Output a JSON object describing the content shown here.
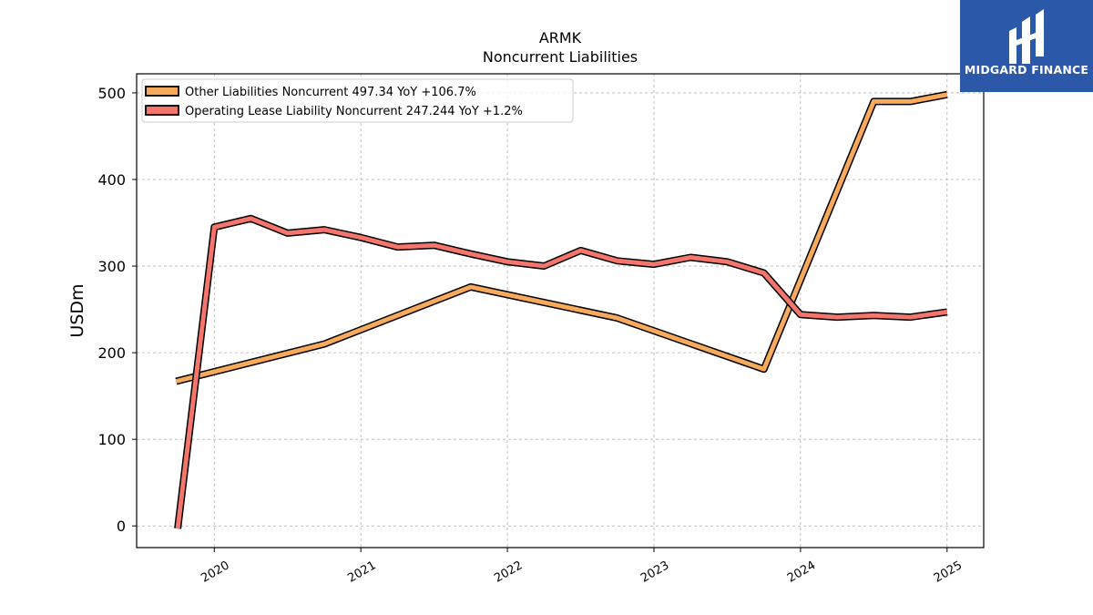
{
  "logo": {
    "text": "MIDGARD FINANCE",
    "bg_color": "#2b58a8"
  },
  "chart_data": {
    "type": "line",
    "title": "ARMK",
    "subtitle": "Noncurrent  Liabilities",
    "xlabel": "",
    "ylabel": "USDm",
    "ylim": [
      -25,
      522
    ],
    "xlim": [
      2019.47,
      2025.25
    ],
    "yticks": [
      0,
      100,
      200,
      300,
      400,
      500
    ],
    "xticks": [
      2020,
      2021,
      2022,
      2023,
      2024,
      2025
    ],
    "grid": true,
    "legend_position": "top-left",
    "series": [
      {
        "name": "Other Liabilities Noncurrent",
        "legend_label": "Other Liabilities Noncurrent  497.34 YoY +106.7%",
        "color": "#f7a95c",
        "x": [
          2019.74,
          2020.75,
          2021.75,
          2022.75,
          2023.75,
          2024.5,
          2024.75,
          2025.0
        ],
        "y": [
          167,
          210,
          276,
          240,
          181,
          490,
          490,
          498
        ]
      },
      {
        "name": "Operating Lease Liability Noncurrent",
        "legend_label": "Operating Lease Liability Noncurrent  247.244 YoY +1.2%",
        "color": "#f4756b",
        "x": [
          2019.75,
          2020.0,
          2020.25,
          2020.5,
          2020.75,
          2021.0,
          2021.25,
          2021.5,
          2021.75,
          2022.0,
          2022.25,
          2022.5,
          2022.75,
          2023.0,
          2023.25,
          2023.5,
          2023.75,
          2024.0,
          2024.25,
          2024.5,
          2024.75,
          2025.0
        ],
        "y": [
          -3,
          345,
          355,
          338,
          342,
          333,
          322,
          324,
          314,
          305,
          300,
          318,
          306,
          302,
          310,
          305,
          292,
          244,
          241,
          243,
          241,
          247
        ]
      }
    ]
  }
}
